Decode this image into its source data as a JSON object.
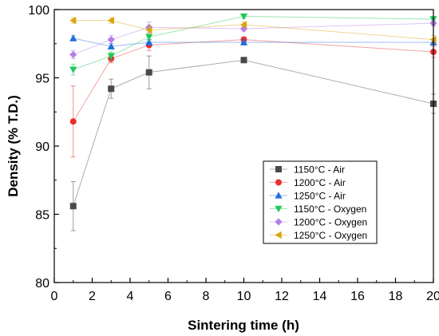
{
  "chart_data": {
    "type": "line",
    "xlabel": "Sintering time (h)",
    "ylabel": "Density (% T.D.)",
    "xlim": [
      0,
      20
    ],
    "ylim": [
      80,
      100
    ],
    "xticks": [
      0,
      2,
      4,
      6,
      8,
      10,
      12,
      14,
      16,
      18,
      20
    ],
    "yticks": [
      80,
      85,
      90,
      95,
      100
    ],
    "x": [
      1,
      3,
      5,
      10,
      20
    ],
    "grid": false,
    "legend_position": "lower-right",
    "series": [
      {
        "name": "1150°C - Air",
        "marker": "square",
        "color": "#4a4a4a",
        "values": [
          85.6,
          94.2,
          95.4,
          96.3,
          93.1
        ],
        "errors": [
          1.8,
          0.7,
          1.2,
          0.15,
          0.7
        ]
      },
      {
        "name": "1200°C - Air",
        "marker": "circle",
        "color": "#e8302f",
        "values": [
          91.8,
          96.4,
          97.4,
          97.8,
          96.9
        ],
        "errors": [
          2.6,
          0.3,
          0.4,
          0.2,
          0.4
        ]
      },
      {
        "name": "1250°C - Air",
        "marker": "triangle-up",
        "color": "#1f6fe0",
        "values": [
          97.9,
          97.3,
          97.6,
          97.6,
          97.6
        ],
        "errors": [
          0.2,
          0.2,
          0.2,
          0.2,
          0.2
        ]
      },
      {
        "name": "1150°C - Oxygen",
        "marker": "triangle-down",
        "color": "#1ec85a",
        "values": [
          95.6,
          96.6,
          98.0,
          99.5,
          99.3
        ],
        "errors": [
          0.4,
          0.3,
          0.3,
          0.15,
          0.15
        ]
      },
      {
        "name": "1200°C - Oxygen",
        "marker": "diamond",
        "color": "#b77ee8",
        "values": [
          96.7,
          97.8,
          98.7,
          98.6,
          99.0
        ],
        "errors": [
          0.3,
          0.3,
          0.4,
          0.2,
          0.2
        ]
      },
      {
        "name": "1250°C - Oxygen",
        "marker": "triangle-left",
        "color": "#d9a50f",
        "values": [
          99.2,
          99.2,
          98.5,
          98.9,
          97.8
        ],
        "errors": [
          0.2,
          0.2,
          0.3,
          0.2,
          0.3
        ]
      }
    ]
  }
}
